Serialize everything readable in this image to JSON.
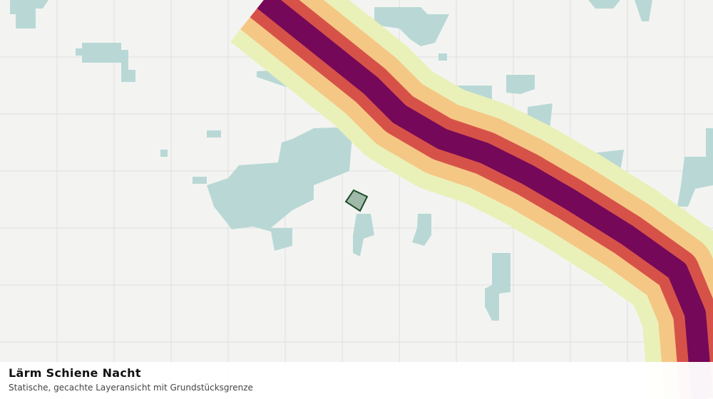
{
  "map": {
    "title": "Lärm Schiene Nacht",
    "subtitle": "Statische, gecachte Layeransicht mit Grundstücksgrenze"
  }
}
